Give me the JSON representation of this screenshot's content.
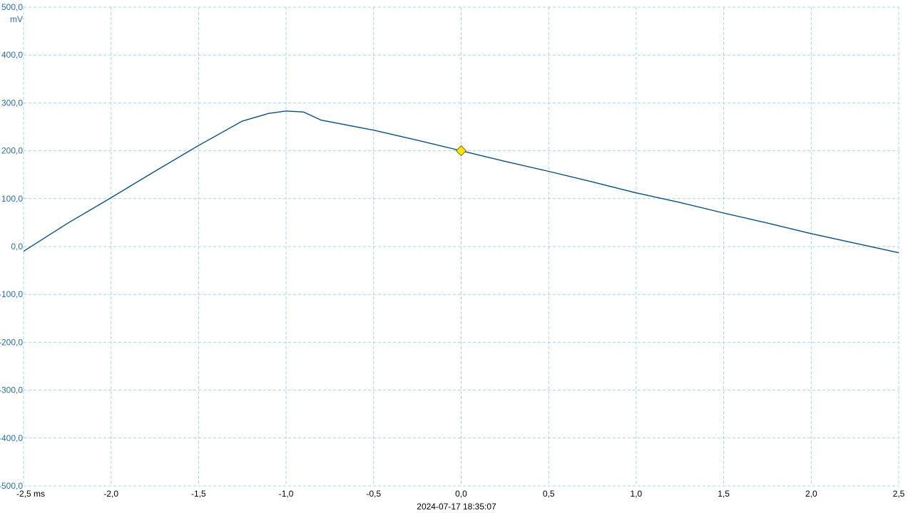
{
  "chart_data": {
    "type": "line",
    "xlim": [
      -2.5,
      2.5
    ],
    "ylim": [
      -500,
      500
    ],
    "x_ticks": [
      -2.5,
      -2.0,
      -1.5,
      -1.0,
      -0.5,
      0.0,
      0.5,
      1.0,
      1.5,
      2.0,
      2.5
    ],
    "x_tick_labels": [
      "-2,5 ms",
      "-2,0",
      "-1,5",
      "-1,0",
      "-0,5",
      "0,0",
      "0,5",
      "1,0",
      "1,5",
      "2,0",
      "2,5"
    ],
    "y_ticks": [
      500,
      400,
      300,
      200,
      100,
      0,
      -100,
      -200,
      -300,
      -400,
      -500
    ],
    "y_tick_labels": [
      "500,0",
      "400,0",
      "300,0",
      "200,0",
      "100,0",
      "0,0",
      "-100,0",
      "-200,0",
      "-300,0",
      "-400,0",
      "-500,0"
    ],
    "y_unit": "mV",
    "grid": true,
    "grid_style": "dashed",
    "timestamp": "2024-07-17 18:35:07",
    "trigger_marker": {
      "x": 0.0,
      "y": 200,
      "color": "#f5e600"
    },
    "colors": {
      "trace": "#0b4f7c",
      "axis_labels": "#2c6e9e",
      "grid": "#a8d4e6",
      "trigger": "#f5e600"
    },
    "series": [
      {
        "x": [
          -2.5,
          -2.25,
          -2.0,
          -1.75,
          -1.5,
          -1.25,
          -1.1,
          -1.0,
          -0.9,
          -0.8,
          -0.5,
          -0.25,
          0.0,
          0.25,
          0.5,
          0.75,
          1.0,
          1.25,
          1.5,
          1.75,
          2.0,
          2.25,
          2.5
        ],
        "y": [
          -10,
          48,
          102,
          157,
          211,
          262,
          278,
          283,
          281,
          264,
          243,
          222,
          200,
          178,
          157,
          135,
          112,
          92,
          70,
          49,
          27,
          7,
          -13
        ]
      }
    ]
  }
}
